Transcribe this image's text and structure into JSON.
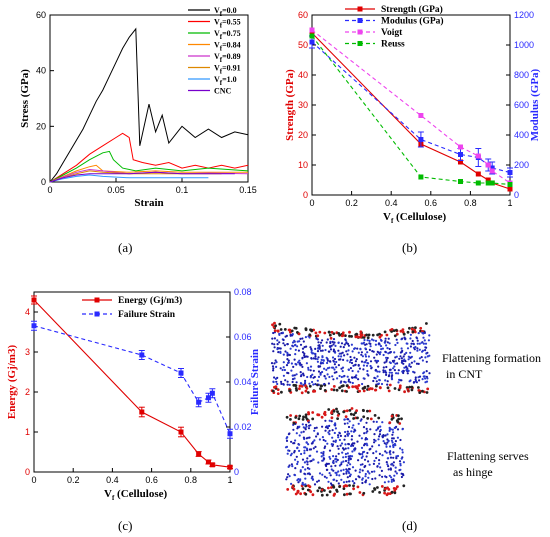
{
  "captions": [
    "(a)",
    "(b)",
    "(c)",
    "(d)"
  ],
  "panel_d": {
    "label_1_line1": "Flattening formation",
    "label_1_line2": "in CNT",
    "label_2_line1": "Flattening serves",
    "label_2_line2": "as hinge"
  },
  "chart_data": [
    {
      "id": "a",
      "type": "line",
      "xlabel": "Strain",
      "ylabel": "Stress (GPa)",
      "xlim": [
        0,
        0.15
      ],
      "ylim": [
        0,
        60
      ],
      "xticks": [
        "0",
        "0.05",
        "0.1",
        "0.15"
      ],
      "yticks": [
        "0",
        "20",
        "40",
        "60"
      ],
      "legend_position": "top-right",
      "series": [
        {
          "name": "Vf=0.0",
          "color": "#000000",
          "points": [
            [
              0,
              0
            ],
            [
              0.005,
              3
            ],
            [
              0.01,
              7
            ],
            [
              0.015,
              11
            ],
            [
              0.02,
              15
            ],
            [
              0.025,
              19
            ],
            [
              0.03,
              24
            ],
            [
              0.035,
              29
            ],
            [
              0.04,
              33
            ],
            [
              0.045,
              38
            ],
            [
              0.05,
              43
            ],
            [
              0.055,
              48
            ],
            [
              0.06,
              52
            ],
            [
              0.065,
              55
            ],
            [
              0.068,
              13
            ],
            [
              0.075,
              28
            ],
            [
              0.08,
              18
            ],
            [
              0.085,
              24
            ],
            [
              0.09,
              14
            ],
            [
              0.1,
              20
            ],
            [
              0.11,
              16
            ],
            [
              0.12,
              19
            ],
            [
              0.13,
              16
            ],
            [
              0.14,
              18
            ],
            [
              0.15,
              17
            ]
          ]
        },
        {
          "name": "Vf=0.55",
          "color": "#ff0000",
          "points": [
            [
              0,
              0
            ],
            [
              0.01,
              3
            ],
            [
              0.02,
              6
            ],
            [
              0.03,
              10
            ],
            [
              0.04,
              13
            ],
            [
              0.05,
              16
            ],
            [
              0.055,
              17.5
            ],
            [
              0.06,
              16
            ],
            [
              0.063,
              8
            ],
            [
              0.07,
              7
            ],
            [
              0.08,
              6
            ],
            [
              0.09,
              7
            ],
            [
              0.1,
              5
            ],
            [
              0.11,
              6
            ],
            [
              0.12,
              5
            ],
            [
              0.13,
              6
            ],
            [
              0.14,
              5
            ],
            [
              0.15,
              6
            ]
          ]
        },
        {
          "name": "Vf=0.75",
          "color": "#00bb00",
          "points": [
            [
              0,
              0
            ],
            [
              0.01,
              2.5
            ],
            [
              0.02,
              5
            ],
            [
              0.03,
              8
            ],
            [
              0.04,
              10.5
            ],
            [
              0.045,
              11
            ],
            [
              0.048,
              8
            ],
            [
              0.055,
              5
            ],
            [
              0.065,
              4
            ],
            [
              0.08,
              5
            ],
            [
              0.1,
              4
            ],
            [
              0.12,
              5
            ],
            [
              0.15,
              4
            ]
          ]
        },
        {
          "name": "Vf=0.84",
          "color": "#ff8800",
          "points": [
            [
              0,
              0
            ],
            [
              0.01,
              2
            ],
            [
              0.02,
              4
            ],
            [
              0.03,
              5.5
            ],
            [
              0.035,
              6
            ],
            [
              0.04,
              4
            ],
            [
              0.06,
              3.5
            ],
            [
              0.08,
              4
            ],
            [
              0.1,
              3.5
            ],
            [
              0.12,
              3.5
            ],
            [
              0.15,
              3.5
            ]
          ]
        },
        {
          "name": "Vf=0.89",
          "color": "#cc33cc",
          "points": [
            [
              0,
              0
            ],
            [
              0.01,
              1.8
            ],
            [
              0.02,
              3.5
            ],
            [
              0.03,
              4.5
            ],
            [
              0.04,
              4
            ],
            [
              0.06,
              3
            ],
            [
              0.08,
              3.5
            ],
            [
              0.1,
              3
            ],
            [
              0.12,
              3.2
            ],
            [
              0.15,
              3
            ]
          ]
        },
        {
          "name": "Vf=0.91",
          "color": "#dd8800",
          "points": [
            [
              0,
              0
            ],
            [
              0.01,
              1.5
            ],
            [
              0.02,
              3
            ],
            [
              0.03,
              4
            ],
            [
              0.04,
              3.5
            ],
            [
              0.06,
              3
            ],
            [
              0.08,
              3
            ],
            [
              0.1,
              3
            ],
            [
              0.13,
              3
            ]
          ]
        },
        {
          "name": "Vf=1.0",
          "color": "#3399ff",
          "points": [
            [
              0,
              0
            ],
            [
              0.01,
              1.2
            ],
            [
              0.02,
              2
            ],
            [
              0.03,
              2.5
            ],
            [
              0.04,
              2
            ],
            [
              0.06,
              1.5
            ],
            [
              0.08,
              1.5
            ],
            [
              0.1,
              1.5
            ],
            [
              0.12,
              1.5
            ]
          ]
        },
        {
          "name": "CNC",
          "color": "#7700cc",
          "points": [
            [
              0,
              0
            ],
            [
              0.01,
              1.5
            ],
            [
              0.02,
              2.5
            ],
            [
              0.03,
              3
            ],
            [
              0.04,
              3
            ],
            [
              0.06,
              3
            ],
            [
              0.08,
              3.5
            ],
            [
              0.1,
              3
            ],
            [
              0.12,
              3
            ],
            [
              0.14,
              3
            ]
          ]
        }
      ]
    },
    {
      "id": "b",
      "type": "line",
      "xlabel": "Vf (Cellulose)",
      "ylabel": "Strength (GPa)",
      "ylabel_right": "Modulus (GPa)",
      "xlim": [
        0,
        1
      ],
      "ylim": [
        0,
        60
      ],
      "ylim_right": [
        0,
        1200
      ],
      "xticks": [
        "0",
        "0.2",
        "0.4",
        "0.6",
        "0.8",
        "1"
      ],
      "yticks": [
        "0",
        "10",
        "20",
        "30",
        "40",
        "50",
        "60"
      ],
      "yticks_right": [
        "0",
        "200",
        "400",
        "600",
        "800",
        "1000",
        "1200"
      ],
      "legend_position": "top-right",
      "series": [
        {
          "name": "Strength (GPa)",
          "axis": "left",
          "color": "#e00000",
          "dash": false,
          "x": [
            0,
            0.55,
            0.75,
            0.84,
            0.89,
            0.91,
            1.0
          ],
          "y": [
            54,
            17,
            11,
            7,
            5,
            4,
            2
          ]
        },
        {
          "name": "Modulus (GPa)",
          "axis": "right",
          "color": "#2a2aff",
          "dash": true,
          "x": [
            0,
            0.55,
            0.75,
            0.84,
            0.89,
            0.91,
            1.0
          ],
          "y": [
            1020,
            370,
            270,
            250,
            200,
            180,
            150
          ],
          "err": [
            40,
            50,
            40,
            60,
            40,
            40,
            30
          ]
        },
        {
          "name": "Voigt",
          "axis": "left",
          "color": "#ee44ee",
          "dash": true,
          "x": [
            0,
            0.55,
            0.75,
            0.84,
            0.89,
            0.91,
            1.0
          ],
          "y": [
            55,
            26.5,
            16,
            13,
            10,
            8,
            4
          ]
        },
        {
          "name": "Reuss",
          "axis": "left",
          "color": "#00bb00",
          "dash": true,
          "x": [
            0,
            0.55,
            0.75,
            0.84,
            0.89,
            0.91,
            1.0
          ],
          "y": [
            53,
            6,
            4.5,
            4,
            4,
            4,
            3.5
          ]
        }
      ]
    },
    {
      "id": "c",
      "type": "line",
      "xlabel": "Vf (Cellulose)",
      "ylabel": "Energy (Gj/m3)",
      "ylabel_right": "Failure Strain",
      "xlim": [
        0,
        1
      ],
      "ylim": [
        0,
        4.5
      ],
      "ylim_right": [
        0,
        0.08
      ],
      "xticks": [
        "0",
        "0.2",
        "0.4",
        "0.6",
        "0.8",
        "1"
      ],
      "yticks": [
        "0",
        "1",
        "2",
        "3",
        "4"
      ],
      "yticks_right": [
        "0",
        "0.02",
        "0.04",
        "0.06",
        "0.08"
      ],
      "legend_position": "top-right",
      "series": [
        {
          "name": "Energy (Gj/m3)",
          "axis": "left",
          "color": "#e00000",
          "dash": false,
          "x": [
            0,
            0.55,
            0.75,
            0.84,
            0.89,
            0.91,
            1.0
          ],
          "y": [
            4.3,
            1.5,
            1.0,
            0.45,
            0.25,
            0.18,
            0.12
          ],
          "err": [
            0.1,
            0.12,
            0.12,
            0.06,
            0.05,
            0.04,
            0.03
          ]
        },
        {
          "name": "Failure Strain",
          "axis": "right",
          "color": "#2a2aff",
          "dash": true,
          "x": [
            0,
            0.55,
            0.75,
            0.84,
            0.89,
            0.91,
            1.0
          ],
          "y": [
            0.065,
            0.052,
            0.044,
            0.031,
            0.033,
            0.035,
            0.017
          ],
          "err": [
            0.002,
            0.002,
            0.002,
            0.002,
            0.002,
            0.002,
            0.002
          ]
        }
      ]
    }
  ]
}
